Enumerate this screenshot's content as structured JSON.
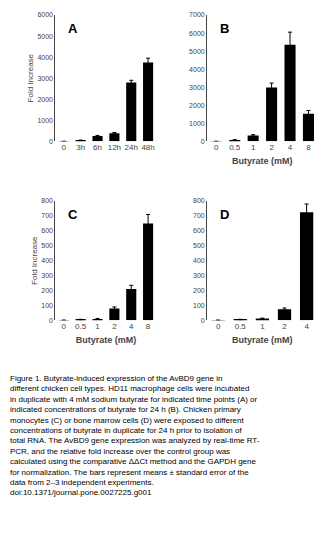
{
  "chart_data": [
    {
      "type": "bar",
      "title": "A",
      "categories": [
        "0",
        "3h",
        "6h",
        "12h",
        "24h",
        "48h"
      ],
      "values": [
        1,
        50,
        250,
        380,
        2800,
        3750
      ],
      "errors": [
        0,
        10,
        30,
        40,
        100,
        200
      ],
      "color": "#000000",
      "ylim": [
        0,
        6000
      ],
      "yticks": [
        0,
        1000,
        2000,
        3000,
        4000,
        5000,
        6000
      ],
      "ylabel": "Fold Increase",
      "grid": false
    },
    {
      "type": "bar",
      "title": "B",
      "categories": [
        "0",
        "0.5",
        "1",
        "2",
        "4",
        "8"
      ],
      "values": [
        1,
        80,
        330,
        2980,
        5350,
        1530
      ],
      "errors": [
        0,
        10,
        40,
        250,
        700,
        180
      ],
      "color": "#000000",
      "ylim": [
        0,
        7000
      ],
      "yticks": [
        0,
        1000,
        2000,
        3000,
        4000,
        5000,
        6000,
        7000
      ],
      "xlabel": "Butyrate (mM)",
      "grid": false
    },
    {
      "type": "bar",
      "title": "C",
      "categories": [
        "0",
        "0.5",
        "1",
        "2",
        "4",
        "8"
      ],
      "values": [
        1,
        5,
        10,
        80,
        210,
        650
      ],
      "errors": [
        0,
        2,
        3,
        10,
        25,
        60
      ],
      "color": "#000000",
      "ylim": [
        0,
        800
      ],
      "yticks": [
        0,
        100,
        200,
        300,
        400,
        500,
        600,
        700,
        800
      ],
      "ylabel": "Fold Increase",
      "xlabel": "Butyrate (mM)",
      "grid": false
    },
    {
      "type": "bar",
      "title": "D",
      "categories": [
        "0",
        "0.5",
        "1",
        "2",
        "4"
      ],
      "values": [
        1,
        5,
        12,
        75,
        725
      ],
      "errors": [
        0,
        2,
        3,
        8,
        55
      ],
      "color": "#000000",
      "ylim": [
        0,
        800
      ],
      "yticks": [
        0,
        100,
        200,
        300,
        400,
        500,
        600,
        700,
        800
      ],
      "xlabel": "Butyrate (mM)",
      "grid": false
    }
  ],
  "caption": [
    "Figure 1. Butyrate-induced expression of the AvBD9 gene in",
    "different chicken cell types. HD11 macrophage cells were incubated",
    "in duplicate with 4 mM sodium butyrate for indicated time points (A) or",
    "indicated concentrations of butyrate for 24 h (B). Chicken primary",
    "monocytes (C) or bone marrow cells (D) were exposed to different",
    "concentrations of butyrate in duplicate for 24 h prior to isolation of",
    "total RNA. The AvBD9 gene expression was analyzed by real-time RT-",
    "PCR, and the relative fold increase over the control group was",
    "calculated using the comparative ΔΔCt method and the GAPDH gene",
    "for normalization. The bars represent means ± standard error of the",
    "data from 2–3 independent experiments.",
    "doi:10.1371/journal.pone.0027225.g001"
  ]
}
